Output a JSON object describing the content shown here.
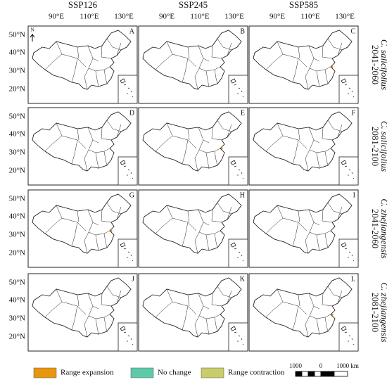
{
  "columns": [
    "SSP126",
    "SSP245",
    "SSP585"
  ],
  "lon_labels": [
    "90°E",
    "110°E",
    "130°E"
  ],
  "lat_labels": [
    "50°N",
    "40°N",
    "30°N",
    "20°N"
  ],
  "rows": [
    {
      "period": "2041-2060",
      "species": "C. salicifolius"
    },
    {
      "period": "2081-2100",
      "species": "C. salicifolius"
    },
    {
      "period": "2041-2060",
      "species": "C. zhejiangensis"
    },
    {
      "period": "2081-2100",
      "species": "C. zhejiangensis"
    }
  ],
  "panels": [
    "A",
    "B",
    "C",
    "D",
    "E",
    "F",
    "G",
    "H",
    "I",
    "J",
    "K",
    "L"
  ],
  "north": "N",
  "legend": [
    "Range expansion",
    "No change",
    "Range contraction"
  ],
  "scale_bar": [
    "1000",
    "0",
    "1000 km"
  ]
}
